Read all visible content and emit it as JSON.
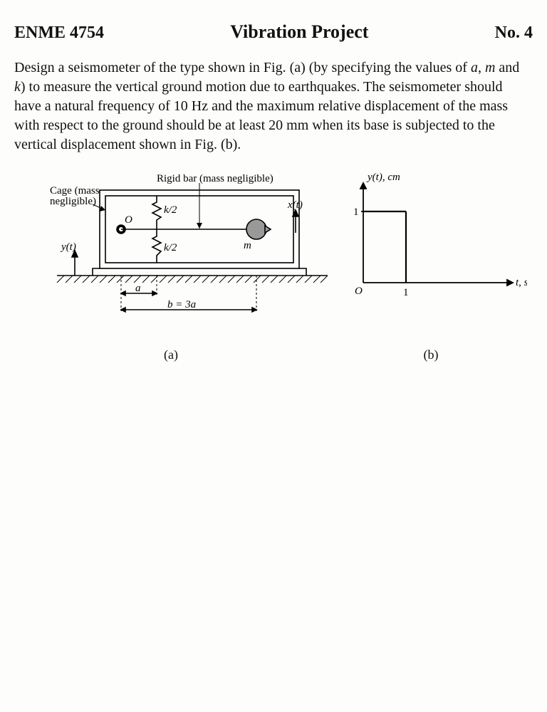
{
  "header": {
    "course": "ENME 4754",
    "title": "Vibration Project",
    "number": "No. 4"
  },
  "problem": {
    "text_parts": [
      "Design a seismometer of the type shown in Fig. (a) (by specifying the values of ",
      "a",
      ", ",
      "m",
      " and ",
      "k",
      ") to measure the vertical ground motion due to earthquakes.  The seismometer should have a natural frequency of 10 Hz and the maximum relative displacement of the mass with respect to the ground should be at least 20 mm when its base is subjected to the vertical displacement shown in Fig. (b)."
    ]
  },
  "figA": {
    "label_cage": "Cage (mass\nnegligible)",
    "label_rigidbar": "Rigid bar (mass negligible)",
    "label_spring_top": "k/2",
    "label_spring_bot": "k/2",
    "label_origin": "O",
    "label_mass": "m",
    "label_y": "y(t)",
    "label_x": "x(t)",
    "dim_a": "a",
    "dim_b": "b = 3a",
    "caption": "(a)",
    "colors": {
      "stroke": "#000000",
      "fill_mass": "#999999"
    },
    "line_width": 1.6
  },
  "figB": {
    "ylabel": "y(t), cm",
    "xlabel": "t, sec",
    "origin": "O",
    "ytick": "1",
    "xtick": "1",
    "caption": "(b)",
    "data": {
      "step_height": 1,
      "step_end": 1
    },
    "colors": {
      "axis": "#000000",
      "line": "#000000"
    },
    "line_width": 1.8
  }
}
